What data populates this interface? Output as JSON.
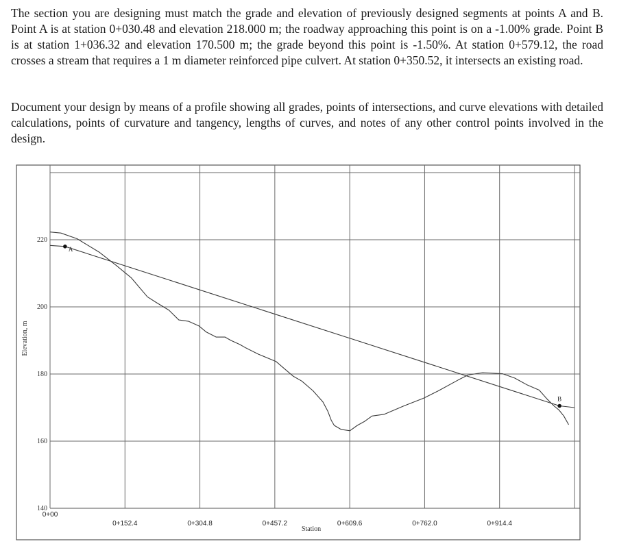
{
  "problem": {
    "paragraph1": "The section you are designing must match the grade and elevation of previously designed segments at points A and B. Point A is at station 0+030.48 and elevation 218.000 m; the roadway approaching this point is on a -1.00% grade. Point B is at station 1+036.32 and elevation 170.500 m; the grade beyond this point is -1.50%. At station 0+579.12, the road crosses a stream that requires a 1 m diameter reinforced pipe culvert. At station 0+350.52, it intersects an existing road.",
    "paragraph2": "Document your design by means of a profile showing all grades, points of intersections, and curve elevations with detailed calculations, points of curvature and tangency, lengths of curves, and notes of any other control points involved in the design."
  },
  "chart_data": {
    "type": "line",
    "ylabel": "Elevation, m",
    "xlabel": "Station",
    "ylim": [
      140,
      240
    ],
    "xlim": [
      0,
      1066.8
    ],
    "y_ticks": [
      {
        "value": 140,
        "label": "140"
      },
      {
        "value": 160,
        "label": "160"
      },
      {
        "value": 180,
        "label": "180"
      },
      {
        "value": 200,
        "label": "200"
      },
      {
        "value": 220,
        "label": "220"
      }
    ],
    "x_ticks": [
      {
        "value": 0,
        "label": "0+00"
      },
      {
        "value": 152.4,
        "label": "0+152.4"
      },
      {
        "value": 304.8,
        "label": "0+304.8"
      },
      {
        "value": 457.2,
        "label": "0+457.2"
      },
      {
        "value": 609.6,
        "label": "0+609.6"
      },
      {
        "value": 762.0,
        "label": "0+762.0"
      },
      {
        "value": 914.4,
        "label": "0+914.4"
      }
    ],
    "grid": true,
    "series": [
      {
        "x": [
          0,
          22,
          55,
          100,
          135,
          165,
          198,
          215,
          242,
          262,
          282,
          303,
          318,
          338,
          356,
          368,
          386,
          398,
          424,
          460,
          478,
          495,
          512,
          535,
          555,
          565,
          572,
          578,
          592,
          610,
          625,
          640,
          655,
          680,
          720,
          760,
          790,
          830,
          850,
          880,
          920,
          945,
          970,
          995,
          1010,
          1025,
          1035,
          1045,
          1055
        ],
        "y": [
          222.3,
          222.0,
          220.3,
          216.3,
          212.3,
          208.7,
          203.0,
          201.4,
          199.0,
          196.1,
          195.7,
          194.3,
          192.5,
          191.0,
          191.0,
          190.0,
          188.8,
          187.8,
          185.9,
          183.7,
          181.4,
          179.3,
          177.9,
          175.0,
          171.7,
          168.9,
          166.2,
          164.7,
          163.5,
          163.1,
          164.7,
          165.9,
          167.5,
          168.0,
          170.5,
          172.8,
          175.0,
          178.2,
          179.7,
          180.4,
          180.1,
          178.8,
          176.8,
          175.2,
          172.7,
          170.5,
          169.3,
          167.5,
          164.9
        ]
      },
      {
        "x": [
          0,
          30.48,
          1036.32,
          1066.8
        ],
        "y": [
          218.3,
          218.0,
          170.5,
          170.0
        ]
      }
    ],
    "points": [
      {
        "label": "A",
        "x": 30.48,
        "y": 218.0
      },
      {
        "label": "B",
        "x": 1036.32,
        "y": 170.5
      }
    ]
  }
}
